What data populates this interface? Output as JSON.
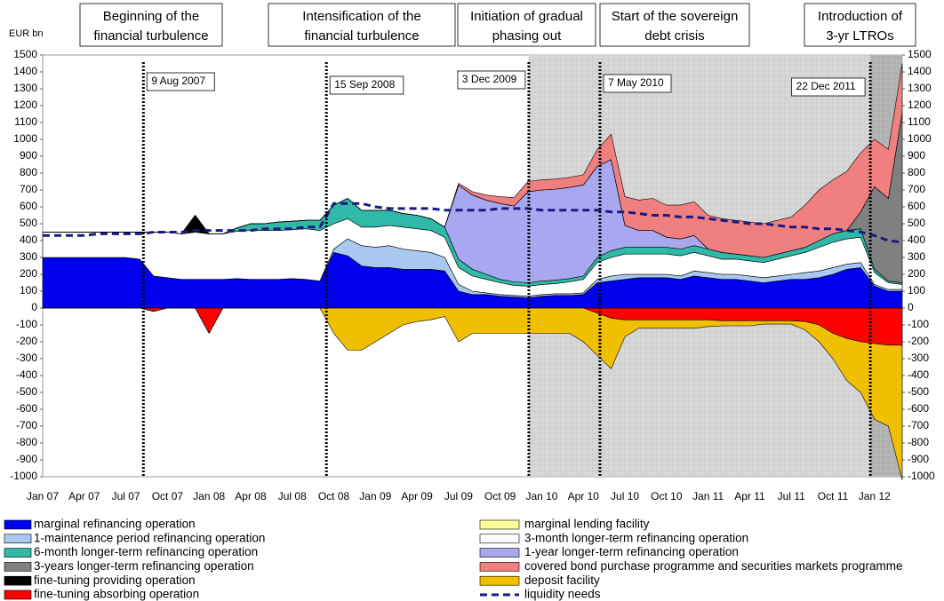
{
  "chart_data": {
    "type": "area",
    "phases": [
      [
        "Beginning of the",
        "financial turbulence"
      ],
      [
        "Intensification of the",
        "financial turbulence"
      ],
      [
        "Initiation of gradual",
        "phasing out"
      ],
      [
        "Start of the sovereign",
        "debt crisis"
      ],
      [
        "Introduction of",
        "3-yr LTROs"
      ]
    ],
    "events": [
      "9 Aug 2007",
      "15 Sep 2008",
      "3 Dec 2009",
      "7 May 2010",
      "22 Dec 2011"
    ],
    "ylabel": "EUR bn",
    "categories": [
      "Jan 07",
      null,
      null,
      "Apr 07",
      null,
      null,
      "Jul 07",
      null,
      null,
      "Oct 07",
      null,
      null,
      "Jan 08",
      null,
      null,
      "Apr 08",
      null,
      null,
      "Jul 08",
      null,
      null,
      "Oct 08",
      null,
      null,
      "Jan 09",
      null,
      null,
      "Apr 09",
      null,
      null,
      "Jul 09",
      null,
      null,
      "Oct 09",
      null,
      null,
      "Jan 10",
      null,
      null,
      "Apr 10",
      null,
      null,
      "Jul 10",
      null,
      null,
      "Oct 10",
      null,
      null,
      "Jan 11",
      null,
      null,
      "Apr 11",
      null,
      null,
      "Jul 11",
      null,
      null,
      "Oct 11",
      null,
      null,
      "Jan 12",
      null,
      null
    ],
    "series": [
      {
        "name": "marginal refinancing operation",
        "color": "#0000ee",
        "values": [
          300,
          300,
          300,
          300,
          300,
          300,
          300,
          290,
          190,
          180,
          170,
          170,
          170,
          170,
          175,
          170,
          170,
          170,
          175,
          170,
          160,
          330,
          310,
          250,
          240,
          240,
          230,
          230,
          230,
          220,
          100,
          80,
          80,
          70,
          65,
          60,
          70,
          75,
          75,
          80,
          150,
          160,
          170,
          180,
          180,
          180,
          170,
          190,
          180,
          170,
          170,
          160,
          150,
          160,
          170,
          170,
          180,
          200,
          230,
          240,
          130,
          100,
          100
        ]
      },
      {
        "name": "1-maintenance period refinancing operation",
        "color": "#a8c8f0",
        "values": [
          0,
          0,
          0,
          0,
          0,
          0,
          0,
          0,
          0,
          0,
          0,
          0,
          0,
          0,
          0,
          0,
          0,
          0,
          0,
          0,
          0,
          20,
          100,
          120,
          120,
          130,
          120,
          110,
          100,
          80,
          40,
          20,
          10,
          10,
          10,
          10,
          10,
          10,
          10,
          10,
          20,
          30,
          30,
          20,
          20,
          20,
          20,
          30,
          30,
          30,
          30,
          30,
          30,
          30,
          30,
          40,
          40,
          40,
          30,
          30,
          10,
          10,
          10
        ]
      },
      {
        "name": "6-month longer-term refinancing operation",
        "color": "#30b8a8",
        "values": [
          0,
          0,
          0,
          0,
          0,
          0,
          0,
          0,
          0,
          0,
          0,
          0,
          0,
          0,
          20,
          40,
          40,
          50,
          50,
          50,
          60,
          110,
          120,
          100,
          100,
          90,
          80,
          80,
          70,
          60,
          50,
          40,
          30,
          20,
          20,
          20,
          20,
          20,
          20,
          20,
          30,
          40,
          40,
          40,
          40,
          40,
          40,
          40,
          40,
          40,
          30,
          30,
          30,
          30,
          30,
          30,
          40,
          50,
          50,
          50,
          20,
          10,
          10
        ]
      },
      {
        "name": "3-years longer-term refinancing operation",
        "color": "#808080",
        "values": [
          0,
          0,
          0,
          0,
          0,
          0,
          0,
          0,
          0,
          0,
          0,
          0,
          0,
          0,
          0,
          0,
          0,
          0,
          0,
          0,
          0,
          0,
          0,
          0,
          0,
          0,
          0,
          0,
          0,
          0,
          0,
          0,
          0,
          0,
          0,
          0,
          0,
          0,
          0,
          0,
          0,
          0,
          0,
          0,
          0,
          0,
          0,
          0,
          0,
          0,
          0,
          0,
          0,
          0,
          0,
          0,
          0,
          0,
          0,
          100,
          490,
          490,
          1010
        ]
      },
      {
        "name": "fine-tuning providing operation",
        "color": "#000000",
        "values": [
          0,
          0,
          0,
          0,
          0,
          0,
          0,
          0,
          0,
          0,
          0,
          100,
          0,
          0,
          0,
          0,
          0,
          0,
          0,
          0,
          0,
          0,
          0,
          0,
          0,
          0,
          0,
          0,
          0,
          0,
          0,
          0,
          0,
          0,
          0,
          0,
          0,
          0,
          0,
          0,
          0,
          0,
          0,
          0,
          0,
          0,
          0,
          0,
          0,
          0,
          0,
          0,
          0,
          0,
          0,
          0,
          0,
          0,
          0,
          0,
          0,
          0,
          0
        ]
      },
      {
        "name": "fine-tuning absorbing operation",
        "color": "#ff0000",
        "values": [
          0,
          0,
          0,
          0,
          0,
          0,
          0,
          0,
          -20,
          0,
          0,
          0,
          -150,
          0,
          0,
          0,
          0,
          0,
          0,
          0,
          0,
          0,
          0,
          0,
          0,
          0,
          0,
          0,
          0,
          0,
          0,
          0,
          0,
          0,
          0,
          0,
          0,
          0,
          0,
          0,
          -30,
          -60,
          -70,
          -70,
          -70,
          -70,
          -70,
          -70,
          -70,
          -75,
          -75,
          -75,
          -75,
          -75,
          -75,
          -80,
          -100,
          -150,
          -180,
          -200,
          -210,
          -220,
          -220
        ]
      },
      {
        "name": "marginal lending facility",
        "color": "#ffff99",
        "values": [
          0,
          0,
          0,
          0,
          0,
          0,
          0,
          0,
          0,
          0,
          0,
          0,
          0,
          0,
          0,
          0,
          0,
          0,
          0,
          0,
          0,
          0,
          0,
          0,
          0,
          0,
          0,
          0,
          0,
          0,
          0,
          0,
          0,
          0,
          0,
          0,
          0,
          0,
          0,
          0,
          0,
          0,
          0,
          0,
          0,
          0,
          0,
          0,
          0,
          0,
          0,
          0,
          0,
          0,
          0,
          0,
          0,
          0,
          0,
          0,
          0,
          0,
          0
        ]
      },
      {
        "name": "3-month longer-term refinancing operation",
        "color": "#ffffff",
        "values": [
          150,
          150,
          150,
          150,
          150,
          150,
          150,
          160,
          260,
          270,
          270,
          280,
          270,
          270,
          280,
          290,
          290,
          290,
          290,
          300,
          300,
          150,
          120,
          110,
          120,
          120,
          130,
          130,
          130,
          120,
          100,
          90,
          80,
          70,
          60,
          60,
          60,
          60,
          70,
          80,
          100,
          110,
          120,
          120,
          120,
          120,
          120,
          110,
          100,
          90,
          90,
          90,
          90,
          100,
          110,
          120,
          140,
          150,
          150,
          150,
          70,
          40,
          30
        ]
      },
      {
        "name": "1-year longer-term refinancing operation",
        "color": "#a8a8f0",
        "values": [
          0,
          0,
          0,
          0,
          0,
          0,
          0,
          0,
          0,
          0,
          0,
          0,
          0,
          0,
          0,
          0,
          0,
          0,
          0,
          0,
          0,
          0,
          0,
          0,
          0,
          0,
          0,
          0,
          0,
          0,
          440,
          440,
          440,
          450,
          450,
          540,
          540,
          540,
          540,
          540,
          540,
          540,
          130,
          100,
          100,
          60,
          60,
          60,
          0,
          0,
          0,
          0,
          0,
          0,
          0,
          0,
          0,
          0,
          0,
          0,
          0,
          0,
          0
        ]
      },
      {
        "name": "covered bond purchase programme and securities markets programme",
        "color": "#f08080",
        "values": [
          0,
          0,
          0,
          0,
          0,
          0,
          0,
          0,
          0,
          0,
          0,
          0,
          0,
          0,
          0,
          0,
          0,
          0,
          0,
          0,
          0,
          0,
          0,
          0,
          0,
          0,
          0,
          0,
          0,
          0,
          10,
          20,
          30,
          40,
          50,
          60,
          60,
          60,
          60,
          60,
          100,
          150,
          170,
          180,
          190,
          190,
          200,
          200,
          200,
          200,
          200,
          200,
          200,
          200,
          200,
          250,
          300,
          320,
          350,
          350,
          280,
          290,
          290
        ]
      },
      {
        "name": "deposit facility",
        "color": "#f0c000",
        "values": [
          0,
          0,
          0,
          0,
          0,
          0,
          0,
          0,
          0,
          0,
          0,
          0,
          0,
          0,
          0,
          0,
          0,
          0,
          0,
          0,
          0,
          -150,
          -250,
          -250,
          -200,
          -150,
          -100,
          -80,
          -70,
          -50,
          -200,
          -150,
          -150,
          -150,
          -150,
          -150,
          -150,
          -150,
          -150,
          -200,
          -250,
          -300,
          -100,
          -50,
          -50,
          -50,
          -50,
          -50,
          -40,
          -30,
          -30,
          -30,
          -20,
          -20,
          -20,
          -50,
          -100,
          -150,
          -250,
          -300,
          -450,
          -480,
          -800
        ]
      },
      {
        "name": "liquidity needs",
        "color": "#1a1a80",
        "values": [
          430,
          430,
          430,
          430,
          440,
          440,
          440,
          440,
          450,
          450,
          450,
          460,
          460,
          460,
          460,
          460,
          470,
          470,
          470,
          480,
          480,
          620,
          620,
          620,
          600,
          590,
          590,
          590,
          590,
          580,
          580,
          580,
          580,
          590,
          590,
          590,
          580,
          580,
          580,
          580,
          580,
          570,
          570,
          560,
          550,
          550,
          540,
          540,
          530,
          520,
          510,
          500,
          500,
          490,
          480,
          480,
          470,
          470,
          460,
          450,
          430,
          400,
          390
        ]
      }
    ],
    "ylim": [
      -1000,
      1500
    ],
    "yticks": [
      -1000,
      -900,
      -800,
      -700,
      -600,
      -500,
      -400,
      -300,
      -200,
      -100,
      0,
      100,
      200,
      300,
      400,
      500,
      600,
      700,
      800,
      900,
      1000,
      1100,
      1200,
      1300,
      1400,
      1500
    ]
  }
}
